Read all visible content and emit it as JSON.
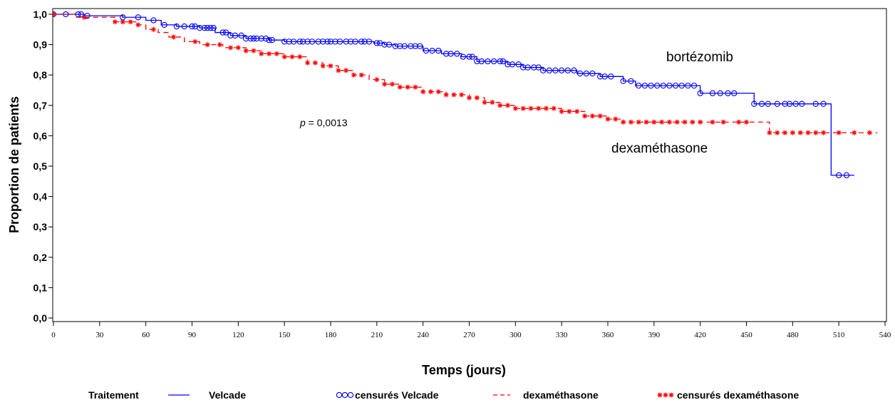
{
  "chart_data": {
    "type": "line",
    "title": "",
    "xlabel": "Temps (jours)",
    "ylabel": "Proportion de patients",
    "xlim": [
      0,
      540
    ],
    "ylim": [
      0,
      1
    ],
    "x_ticks": [
      "0",
      "30",
      "60",
      "90",
      "120",
      "150",
      "180",
      "210",
      "240",
      "270",
      "300",
      "330",
      "360",
      "390",
      "420",
      "450",
      "480",
      "510",
      "540"
    ],
    "y_ticks": [
      "0,0",
      "0,1",
      "0,2",
      "0,3",
      "0,4",
      "0,5",
      "0,6",
      "0,7",
      "0,8",
      "0,9",
      "1,0"
    ],
    "grid": false,
    "annotations": {
      "p_label": "p",
      "p_value": " = 0,0013",
      "series_a": "bortézomib",
      "series_b": "dexaméthasone"
    },
    "legend": {
      "title": "Traitement",
      "position": "bottom",
      "items": [
        "Velcade",
        "censurés Velcade",
        "dexaméthasone",
        "censurés dexaméthasone"
      ]
    },
    "series": [
      {
        "name": "Velcade",
        "color": "#0000ff",
        "style": "solid",
        "steps": [
          [
            0,
            1.0
          ],
          [
            20,
            0.995
          ],
          [
            45,
            0.99
          ],
          [
            60,
            0.98
          ],
          [
            70,
            0.965
          ],
          [
            80,
            0.96
          ],
          [
            95,
            0.955
          ],
          [
            105,
            0.94
          ],
          [
            115,
            0.93
          ],
          [
            125,
            0.92
          ],
          [
            140,
            0.915
          ],
          [
            150,
            0.91
          ],
          [
            208,
            0.905
          ],
          [
            215,
            0.9
          ],
          [
            222,
            0.895
          ],
          [
            240,
            0.88
          ],
          [
            252,
            0.87
          ],
          [
            265,
            0.86
          ],
          [
            275,
            0.845
          ],
          [
            295,
            0.835
          ],
          [
            305,
            0.825
          ],
          [
            318,
            0.815
          ],
          [
            340,
            0.805
          ],
          [
            355,
            0.795
          ],
          [
            370,
            0.78
          ],
          [
            378,
            0.765
          ],
          [
            420,
            0.74
          ],
          [
            455,
            0.705
          ],
          [
            505,
            0.47
          ],
          [
            520,
            0.47
          ]
        ],
        "censored_x": [
          0,
          8,
          16,
          18,
          22,
          45,
          55,
          65,
          72,
          80,
          85,
          90,
          92,
          95,
          98,
          100,
          102,
          104,
          110,
          112,
          115,
          118,
          122,
          125,
          128,
          130,
          132,
          135,
          138,
          140,
          142,
          150,
          153,
          156,
          160,
          162,
          165,
          168,
          172,
          175,
          178,
          180,
          183,
          186,
          190,
          193,
          196,
          200,
          202,
          205,
          210,
          212,
          215,
          218,
          222,
          225,
          228,
          232,
          235,
          238,
          242,
          246,
          250,
          255,
          258,
          262,
          266,
          270,
          272,
          275,
          278,
          282,
          286,
          290,
          292,
          295,
          298,
          302,
          305,
          308,
          312,
          315,
          318,
          322,
          326,
          330,
          334,
          338,
          342,
          346,
          350,
          355,
          358,
          362,
          370,
          375,
          380,
          384,
          388,
          392,
          396,
          400,
          404,
          408,
          412,
          416,
          420,
          428,
          433,
          438,
          442,
          455,
          460,
          464,
          470,
          475,
          478,
          482,
          486,
          495,
          500,
          510,
          515
        ]
      },
      {
        "name": "dexaméthasone",
        "color": "#ff0000",
        "style": "dashed",
        "steps": [
          [
            0,
            1.0
          ],
          [
            15,
            0.99
          ],
          [
            40,
            0.975
          ],
          [
            55,
            0.965
          ],
          [
            60,
            0.95
          ],
          [
            68,
            0.94
          ],
          [
            75,
            0.925
          ],
          [
            85,
            0.91
          ],
          [
            95,
            0.9
          ],
          [
            110,
            0.89
          ],
          [
            125,
            0.88
          ],
          [
            135,
            0.87
          ],
          [
            150,
            0.86
          ],
          [
            165,
            0.84
          ],
          [
            175,
            0.83
          ],
          [
            185,
            0.815
          ],
          [
            195,
            0.8
          ],
          [
            205,
            0.785
          ],
          [
            215,
            0.77
          ],
          [
            225,
            0.76
          ],
          [
            240,
            0.745
          ],
          [
            255,
            0.735
          ],
          [
            270,
            0.725
          ],
          [
            280,
            0.71
          ],
          [
            290,
            0.7
          ],
          [
            300,
            0.69
          ],
          [
            330,
            0.68
          ],
          [
            345,
            0.665
          ],
          [
            360,
            0.655
          ],
          [
            370,
            0.645
          ],
          [
            465,
            0.61
          ],
          [
            535,
            0.61
          ]
        ],
        "censored_x": [
          0,
          20,
          40,
          45,
          50,
          55,
          65,
          78,
          92,
          100,
          108,
          115,
          120,
          125,
          130,
          135,
          140,
          145,
          150,
          155,
          160,
          165,
          170,
          175,
          180,
          185,
          190,
          195,
          200,
          210,
          215,
          220,
          225,
          230,
          235,
          240,
          245,
          250,
          255,
          260,
          265,
          270,
          275,
          280,
          285,
          290,
          295,
          300,
          305,
          310,
          315,
          320,
          325,
          330,
          335,
          340,
          345,
          350,
          355,
          360,
          365,
          370,
          375,
          380,
          385,
          390,
          395,
          400,
          405,
          410,
          415,
          420,
          428,
          435,
          445,
          450,
          465,
          470,
          475,
          480,
          485,
          490,
          495,
          500,
          510,
          520,
          530
        ]
      }
    ]
  }
}
